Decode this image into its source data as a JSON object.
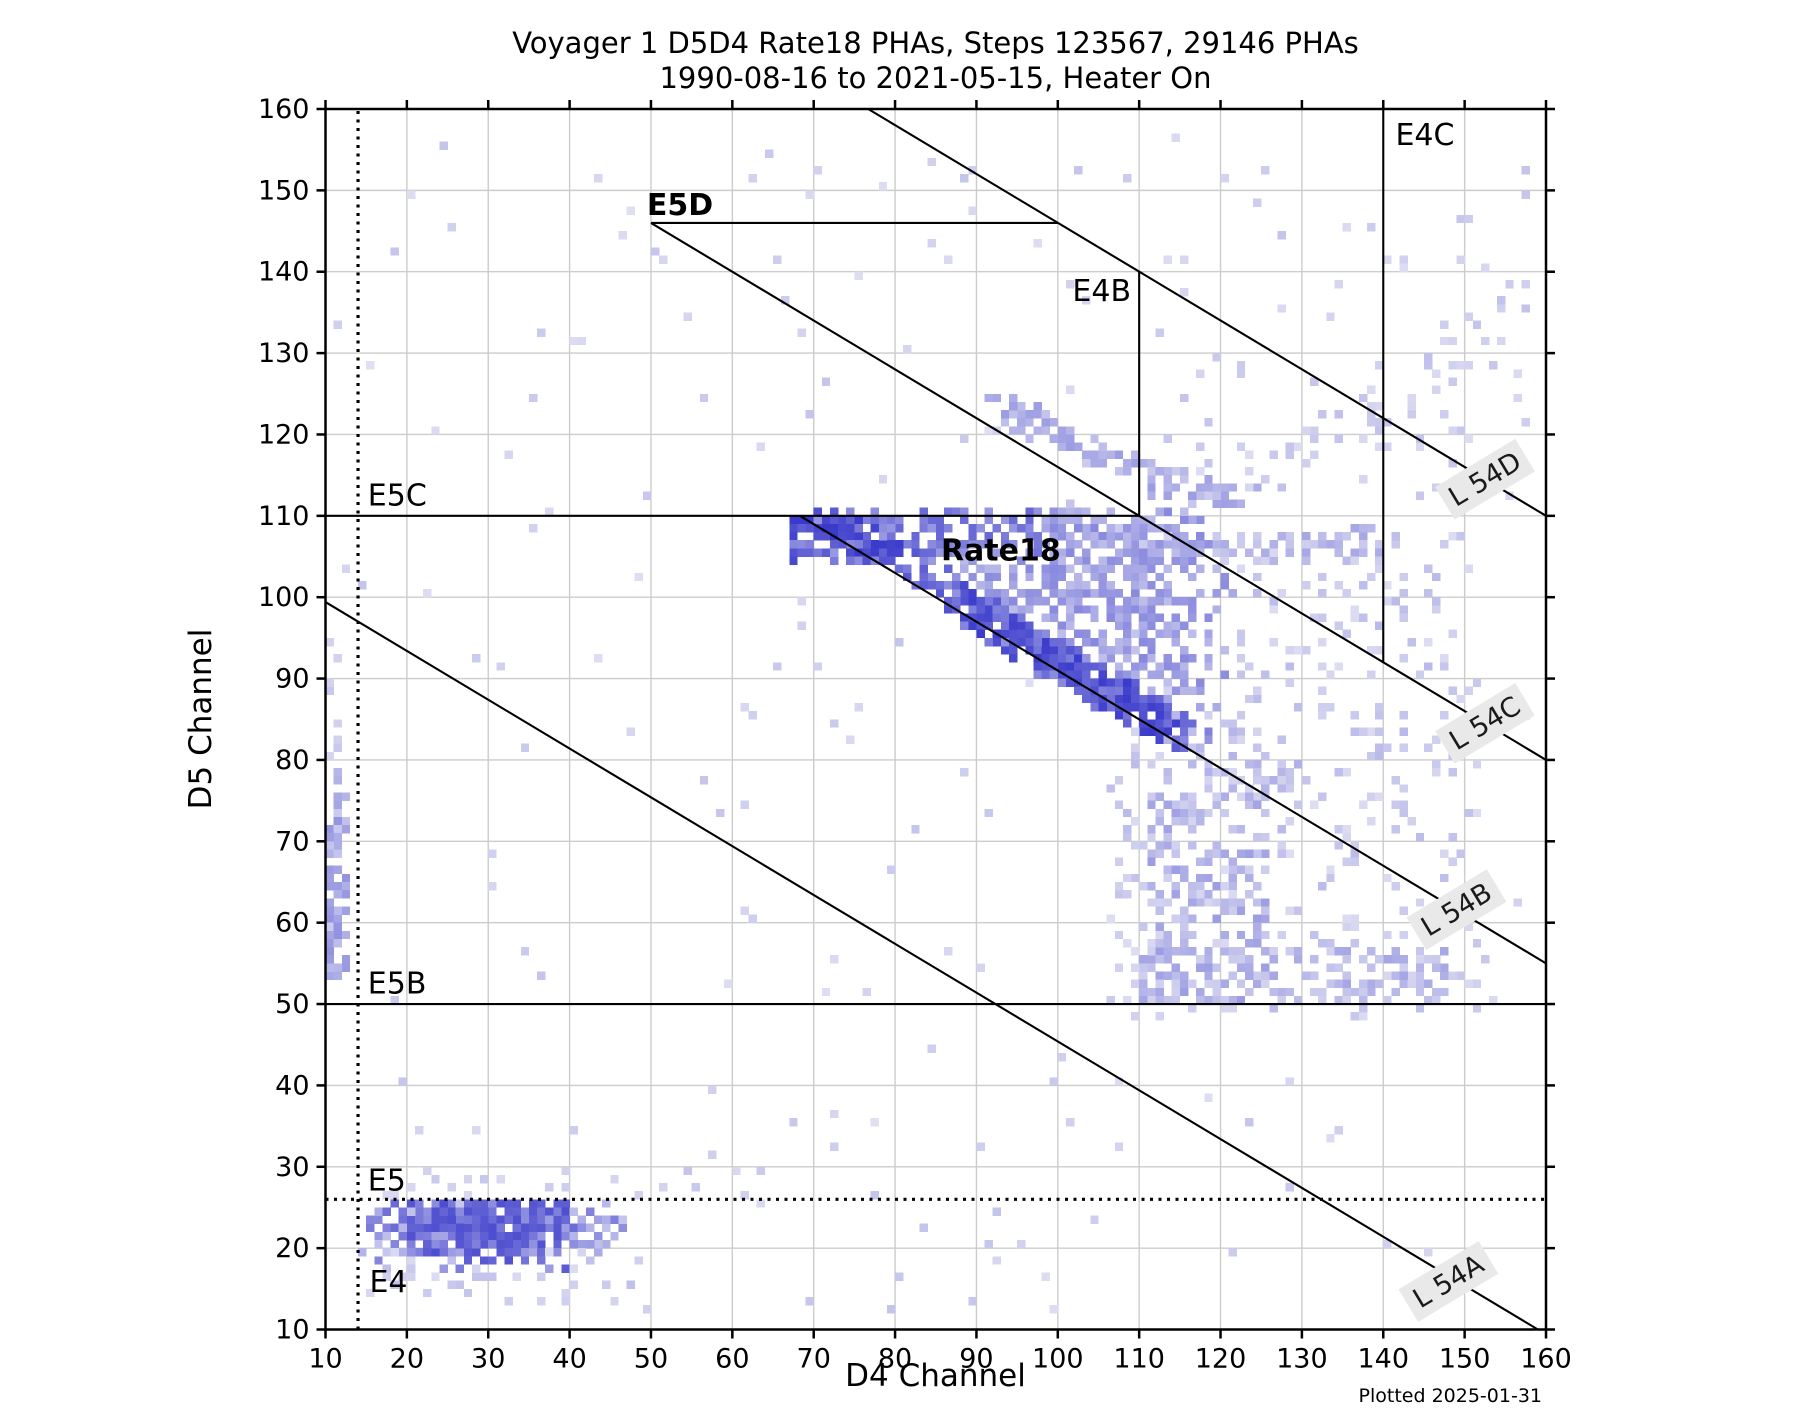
{
  "title": {
    "line1": "Voyager 1 D5D4 Rate18 PHAs, Steps 123567, 29146 PHAs",
    "line2": "1990-08-16 to 2021-05-15, Heater On"
  },
  "footer": {
    "plotted": "Plotted 2025-01-31"
  },
  "axes": {
    "xlabel": "D4 Channel",
    "ylabel": "D5 Channel",
    "xmin": 10,
    "xmax": 160,
    "ymin": 10,
    "ymax": 160,
    "x_ticks": [
      10,
      20,
      30,
      40,
      50,
      60,
      70,
      80,
      90,
      100,
      110,
      120,
      130,
      140,
      150,
      160
    ],
    "y_ticks": [
      10,
      20,
      30,
      40,
      50,
      60,
      70,
      80,
      90,
      100,
      110,
      120,
      130,
      140,
      150,
      160
    ],
    "grid": true,
    "grid_color": "#cccccc"
  },
  "chart_data": {
    "type": "heatmap",
    "title": "Voyager 1 D5D4 Rate18 PHAs, Steps 123567, 29146 PHAs",
    "subtitle": "1990-08-16 to 2021-05-15, Heater On",
    "n_phas": 29146,
    "steps": "123567",
    "date_start": "1990-08-16",
    "date_end": "2021-05-15",
    "heater": "On",
    "xlabel": "D4 Channel",
    "ylabel": "D5 Channel",
    "xlim": [
      10,
      160
    ],
    "ylim": [
      10,
      160
    ],
    "bin_size": 1,
    "colormap": {
      "zero": "#ffffff",
      "light": "#dcdcf4",
      "dark": "#3c3ccd"
    },
    "boundary_lines": [
      {
        "name": "E4-threshold",
        "style": "dotted",
        "pts": [
          [
            14,
            10
          ],
          [
            14,
            160
          ]
        ]
      },
      {
        "name": "E5-threshold",
        "style": "dotted",
        "pts": [
          [
            10,
            26
          ],
          [
            160,
            26
          ]
        ]
      },
      {
        "name": "E5B-line",
        "style": "solid",
        "pts": [
          [
            10,
            50
          ],
          [
            160,
            50
          ]
        ]
      },
      {
        "name": "E5C-line",
        "style": "solid",
        "pts": [
          [
            10,
            110
          ],
          [
            110,
            110
          ]
        ]
      },
      {
        "name": "E4B-line",
        "style": "solid",
        "pts": [
          [
            110,
            110
          ],
          [
            110,
            140
          ]
        ]
      },
      {
        "name": "E4C-line",
        "style": "solid",
        "pts": [
          [
            140,
            92
          ],
          [
            140,
            160
          ]
        ]
      },
      {
        "name": "E5D-line",
        "style": "solid",
        "pts": [
          [
            50,
            146
          ],
          [
            100,
            146
          ]
        ]
      },
      {
        "name": "L54D-line",
        "style": "solid",
        "pts": [
          [
            76.7,
            160
          ],
          [
            160,
            110
          ]
        ]
      },
      {
        "name": "L54C-line",
        "style": "solid",
        "pts": [
          [
            50,
            146
          ],
          [
            160,
            80
          ]
        ]
      },
      {
        "name": "L54B-line",
        "style": "solid",
        "pts": [
          [
            68.3,
            110
          ],
          [
            160,
            55
          ]
        ]
      },
      {
        "name": "L54A-line",
        "style": "solid",
        "pts": [
          [
            10,
            99.4
          ],
          [
            159,
            10
          ]
        ]
      }
    ],
    "region_labels": [
      {
        "id": "E5D",
        "text": "E5D",
        "x": 49.5,
        "y": 147.0,
        "anchor": "start",
        "bold": true
      },
      {
        "id": "E4C",
        "text": "E4C",
        "x": 141.5,
        "y": 155.6,
        "anchor": "start",
        "bold": false
      },
      {
        "id": "E4B",
        "text": "E4B",
        "x": 109.0,
        "y": 136.4,
        "anchor": "end",
        "bold": false
      },
      {
        "id": "E5C",
        "text": "E5C",
        "x": 15.2,
        "y": 111.3,
        "anchor": "start",
        "bold": false
      },
      {
        "id": "E5B",
        "text": "E5B",
        "x": 15.2,
        "y": 51.3,
        "anchor": "start",
        "bold": false
      },
      {
        "id": "E5",
        "text": "E5",
        "x": 15.2,
        "y": 27.1,
        "anchor": "start",
        "bold": false
      },
      {
        "id": "E4",
        "text": "E4",
        "x": 15.4,
        "y": 14.6,
        "anchor": "start",
        "bold": false
      },
      {
        "id": "Rate18",
        "text": "Rate18",
        "x": 93.0,
        "y": 104.5,
        "anchor": "middle",
        "bold": true
      }
    ],
    "line_labels": [
      {
        "id": "L54D",
        "text": "L 54D",
        "x": 152.5,
        "y": 114.5,
        "rotation": -31
      },
      {
        "id": "L54C",
        "text": "L 54C",
        "x": 152.5,
        "y": 84.5,
        "rotation": -31
      },
      {
        "id": "L54B",
        "text": "L 54B",
        "x": 149.0,
        "y": 61.6,
        "rotation": -31
      },
      {
        "id": "L54A",
        "text": "L 54A",
        "x": 148.0,
        "y": 15.9,
        "rotation": -31
      }
    ],
    "density_clusters": [
      {
        "kind": "tri",
        "count": 680,
        "x": [
          66,
          122
        ],
        "y": [
          82,
          110.4
        ],
        "c": 151,
        "slope": -0.6,
        "fadeX": 112,
        "w": [
          0.32,
          0.6
        ],
        "note": "main Rate18 triangle fill"
      },
      {
        "kind": "lineband",
        "count": 230,
        "x": [
          88,
          116
        ],
        "c": 151,
        "slope": -0.6,
        "spread": [
          -1.5,
          3.5
        ],
        "w": [
          0.55,
          1.0
        ],
        "note": "dark ridge along L54B"
      },
      {
        "kind": "lineband",
        "count": 70,
        "x": [
          112,
          130
        ],
        "c": 151,
        "slope": -0.6,
        "spread": [
          -2,
          6
        ],
        "w": [
          0.2,
          0.4
        ],
        "note": "ridge fade beyond triangle"
      },
      {
        "kind": "box",
        "count": 95,
        "x": [
          67,
          80
        ],
        "y": [
          104,
          110
        ],
        "w": [
          0.5,
          0.95
        ],
        "note": "dark tip upper-left of triangle"
      },
      {
        "kind": "gauss",
        "count": 430,
        "cx": 29,
        "cy": 22.6,
        "sx": 8,
        "sy": 2.0,
        "clampx": [
          14,
          48
        ],
        "clampy": [
          16,
          25.8
        ],
        "w": [
          0.3,
          0.75
        ],
        "note": "low-channel blob"
      },
      {
        "kind": "box",
        "count": 65,
        "x": [
          15,
          50
        ],
        "y": [
          12,
          26
        ],
        "w": [
          0.18,
          0.32
        ],
        "note": "blob fringe"
      },
      {
        "kind": "box",
        "count": 22,
        "x": [
          15,
          65
        ],
        "y": [
          26,
          29.5
        ],
        "w": [
          0.18,
          0.3
        ],
        "note": "fringe above E5 dotted line"
      },
      {
        "kind": "box",
        "count": 80,
        "x": [
          10,
          12.6
        ],
        "y": [
          53,
          80
        ],
        "w": [
          0.25,
          0.55
        ],
        "note": "left-edge stripe"
      },
      {
        "kind": "box",
        "count": 10,
        "x": [
          10,
          12
        ],
        "y": [
          80,
          95
        ],
        "w": [
          0.2,
          0.3
        ]
      },
      {
        "kind": "bezier",
        "count": 125,
        "p0": [
          92,
          125
        ],
        "p1": [
          108,
          114
        ],
        "p2": [
          124,
          112
        ],
        "jitter": 1.6,
        "w": [
          0.25,
          0.5
        ],
        "note": "upper curved track"
      },
      {
        "kind": "bezier",
        "count": 95,
        "p0": [
          100,
          110.5
        ],
        "p1": [
          118,
          103.5
        ],
        "p2": [
          140,
          107.5
        ],
        "jitter": 1.6,
        "w": [
          0.22,
          0.45
        ],
        "note": "lower curved track"
      },
      {
        "kind": "bezier",
        "count": 42,
        "p0": [
          124,
          113
        ],
        "p1": [
          139,
          123
        ],
        "p2": [
          156,
          135
        ],
        "jitter": 3,
        "w": [
          0.18,
          0.32
        ],
        "note": "faint trail upper right"
      },
      {
        "kind": "box",
        "count": 34,
        "x": [
          109.4,
          111.6
        ],
        "y": [
          92,
          110
        ],
        "w": [
          0.25,
          0.45
        ],
        "note": "points hugging E4B line"
      },
      {
        "kind": "box",
        "count": 300,
        "x": [
          106,
          152
        ],
        "y": [
          48,
          108
        ],
        "w": [
          0.17,
          0.35
        ],
        "avoidTri": true,
        "note": "right diffuse cloud"
      },
      {
        "kind": "box",
        "count": 185,
        "x": [
          111,
          126
        ],
        "y": [
          50,
          76
        ],
        "w": [
          0.22,
          0.5
        ],
        "note": "denser right column"
      },
      {
        "kind": "box",
        "count": 125,
        "x": [
          110,
          148
        ],
        "y": [
          50,
          57
        ],
        "w": [
          0.22,
          0.45
        ],
        "note": "band above E5B right side"
      },
      {
        "kind": "box",
        "count": 42,
        "x": [
          112,
          158
        ],
        "y": [
          112,
          147
        ],
        "w": [
          0.17,
          0.3
        ],
        "note": "sparse top right"
      },
      {
        "kind": "box",
        "count": 195,
        "x": [
          11,
          158
        ],
        "y": [
          11.5,
          157
        ],
        "w": [
          0.16,
          0.3
        ],
        "avoidTri": true,
        "note": "global sparse scatter"
      }
    ]
  }
}
